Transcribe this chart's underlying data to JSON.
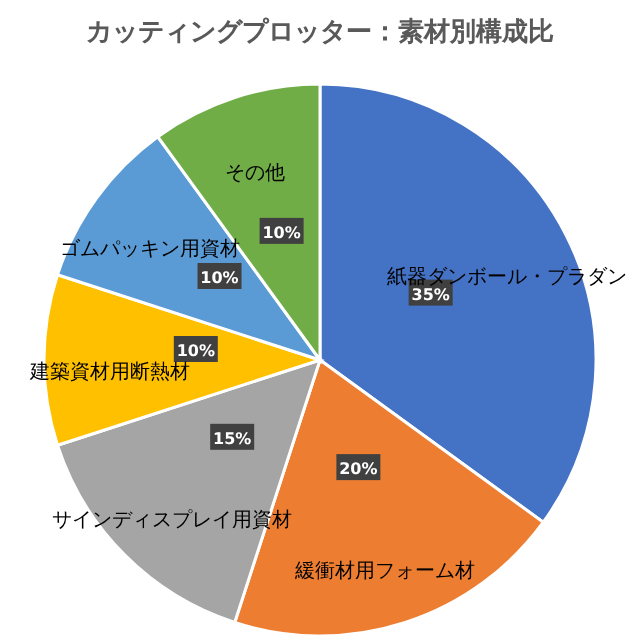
{
  "chart_data": {
    "type": "pie",
    "title": "カッティングプロッター：素材別構成比",
    "categories": [
      "紙器ダンボール・プラダン",
      "緩衝材用フォーム材",
      "サインディスプレイ用資材",
      "建築資材用断熱材",
      "ゴムパッキン用資材",
      "その他"
    ],
    "values": [
      35,
      20,
      15,
      10,
      10,
      10
    ],
    "colors": [
      "#4472c4",
      "#ed7d31",
      "#a5a5a5",
      "#ffc000",
      "#5b9bd5",
      "#70ad47"
    ],
    "value_labels": [
      "35%",
      "20%",
      "15%",
      "10%",
      "10%",
      "10%"
    ]
  }
}
